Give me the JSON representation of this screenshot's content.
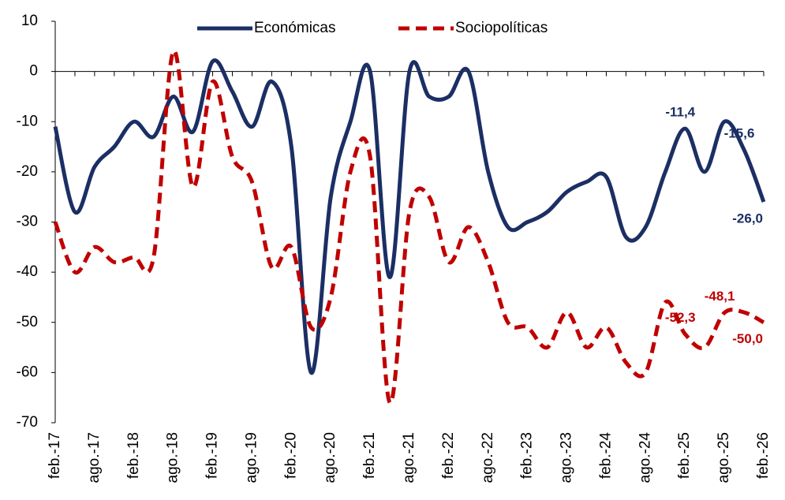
{
  "chart_data": {
    "type": "line",
    "categories": [
      "feb.-17",
      null,
      "ago.-17",
      null,
      "feb.-18",
      null,
      "ago.-18",
      null,
      "feb.-19",
      null,
      "ago.-19",
      null,
      "feb.-20",
      null,
      "ago.-20",
      null,
      "feb.-21",
      null,
      "ago.-21",
      null,
      "feb.-22",
      null,
      "ago.-22",
      null,
      "feb.-23",
      null,
      "ago.-23",
      null,
      "feb.-24",
      null,
      "ago.-24",
      null,
      "feb.-25",
      null,
      "ago.-25",
      null,
      "feb.-26"
    ],
    "series": [
      {
        "name": "Económicas",
        "color": "#1b2f64",
        "dash": false,
        "values": [
          -11,
          -28,
          -19,
          -15,
          -10,
          -13,
          -5,
          -12,
          2,
          -4,
          -11,
          -2,
          -15,
          -60,
          -25,
          -10,
          0,
          -41,
          0,
          -5,
          -5,
          0,
          -20,
          -31,
          -30,
          -28,
          -24,
          -22,
          -21,
          -33,
          -31,
          -20,
          -11.4,
          -20,
          -10,
          -15.6,
          -26.0
        ],
        "value_labels": [
          null,
          null,
          null,
          null,
          null,
          null,
          null,
          null,
          null,
          null,
          null,
          null,
          null,
          null,
          null,
          null,
          null,
          null,
          null,
          null,
          null,
          null,
          null,
          null,
          null,
          null,
          null,
          null,
          null,
          null,
          null,
          null,
          "-11,4",
          null,
          null,
          "-15,6",
          "-26,0"
        ]
      },
      {
        "name": "Sociopolíticas",
        "color": "#c00000",
        "dash": true,
        "values": [
          -30,
          -40,
          -35,
          -38,
          -37,
          -37,
          4,
          -23,
          -2,
          -17,
          -22,
          -39,
          -35,
          -51,
          -45,
          -20,
          -17,
          -66,
          -28,
          -25,
          -38,
          -31,
          -38,
          -50,
          -51,
          -55,
          -48,
          -55,
          -51,
          -58,
          -60,
          -46,
          -52.3,
          -55,
          -48.1,
          -48,
          -50.0
        ],
        "value_labels": [
          null,
          null,
          null,
          null,
          null,
          null,
          null,
          null,
          null,
          null,
          null,
          null,
          null,
          null,
          null,
          null,
          null,
          null,
          null,
          null,
          null,
          null,
          null,
          null,
          null,
          null,
          null,
          null,
          null,
          null,
          null,
          null,
          "-52,3",
          null,
          "-48,1",
          null,
          "-50,0"
        ]
      }
    ],
    "ylim": [
      -70,
      10
    ],
    "yticks": [
      10,
      0,
      -10,
      -20,
      -30,
      -40,
      -50,
      -60,
      -70
    ],
    "grid": false
  }
}
